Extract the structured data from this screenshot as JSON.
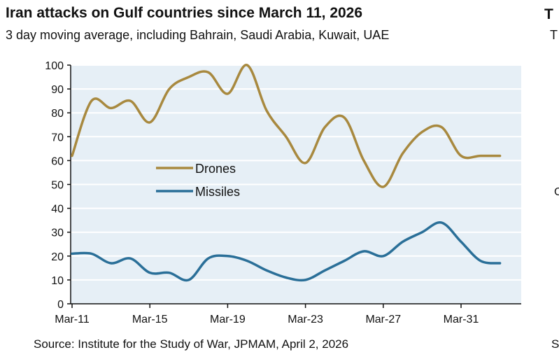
{
  "chart_data": {
    "type": "line",
    "title": "Iran attacks on Gulf countries since March 11, 2026",
    "subtitle": "3 day moving average, including Bahrain, Saudi Arabia, Kuwait, UAE",
    "source": "Source: Institute for the Study of War, JPMAM, April 2, 2026",
    "xlabel": "",
    "ylabel": "",
    "ylim": [
      0,
      100
    ],
    "yticks": [
      "0",
      "10",
      "20",
      "30",
      "40",
      "50",
      "60",
      "70",
      "80",
      "90",
      "100"
    ],
    "x": [
      "Mar-11",
      "Mar-12",
      "Mar-13",
      "Mar-14",
      "Mar-15",
      "Mar-16",
      "Mar-17",
      "Mar-18",
      "Mar-19",
      "Mar-20",
      "Mar-21",
      "Mar-22",
      "Mar-23",
      "Mar-24",
      "Mar-25",
      "Mar-26",
      "Mar-27",
      "Mar-28",
      "Mar-29",
      "Mar-30",
      "Mar-31",
      "Apr-01",
      "Apr-02"
    ],
    "xticks": [
      "Mar-11",
      "Mar-15",
      "Mar-19",
      "Mar-23",
      "Mar-27",
      "Mar-31"
    ],
    "grid": true,
    "legend_position": "center-left",
    "series": [
      {
        "name": "Drones",
        "color": "#a8893f",
        "values": [
          62,
          85,
          82,
          85,
          76,
          90,
          95,
          97,
          88,
          100,
          81,
          70,
          59,
          74,
          78,
          60,
          49,
          63,
          72,
          74,
          62,
          62,
          62
        ]
      },
      {
        "name": "Missiles",
        "color": "#2a6f98",
        "values": [
          21,
          21,
          17,
          19,
          13,
          13,
          10,
          19,
          20,
          18,
          14,
          11,
          10,
          14,
          18,
          22,
          20,
          26,
          30,
          34,
          26,
          18,
          17
        ]
      }
    ],
    "plot_background": "#e6eff6"
  },
  "fragments": [
    "T",
    "T",
    "C",
    "S"
  ]
}
